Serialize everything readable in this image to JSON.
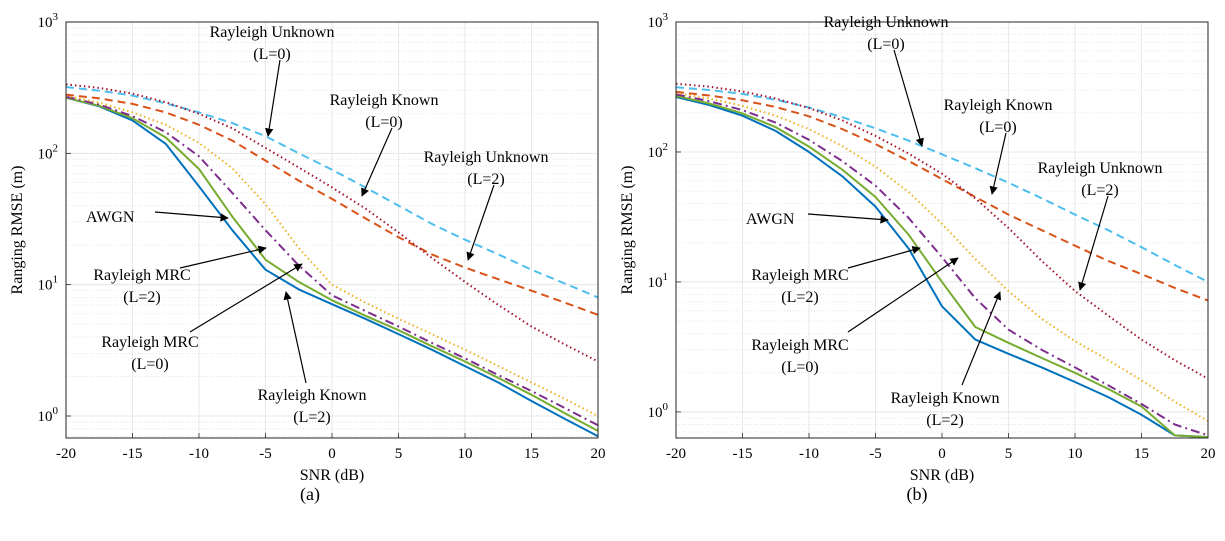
{
  "colors": {
    "AWGN": "#0072BD",
    "Rayleigh MRC (L=2)": "#77AC30",
    "Rayleigh MRC (L=0)": "#7E2F8E",
    "Rayleigh Known (L=2)": "#EDB120",
    "Rayleigh Known (L=0)": "#D95319",
    "Rayleigh Unknown (L=0)": "#4DBEEE",
    "Rayleigh Unknown (L=2)": "#A2142F"
  },
  "chart_data": [
    {
      "type": "line",
      "caption": "(a)",
      "xlabel": "SNR (dB)",
      "ylabel": "Ranging RMSE (m)",
      "xlim": [
        -20,
        20
      ],
      "ylim": [
        0.68,
        1000
      ],
      "yscale": "log",
      "grid": true,
      "xticks": [
        "-20",
        "-15",
        "-10",
        "-5",
        "0",
        "5",
        "10",
        "15",
        "20"
      ],
      "yticks": [
        "10^0",
        "10^1",
        "10^2",
        "10^3"
      ],
      "x": [
        -20,
        -17.5,
        -15,
        -12.5,
        -10,
        -7.5,
        -5,
        -2.5,
        0,
        2.5,
        5,
        7.5,
        10,
        12.5,
        15,
        17.5,
        20
      ],
      "series": [
        {
          "name": "AWGN",
          "style": "solid",
          "values": [
            265,
            228,
            178,
            118,
            56,
            26,
            13,
            9.2,
            7.1,
            5.5,
            4.2,
            3.2,
            2.4,
            1.8,
            1.3,
            0.95,
            0.7
          ]
        },
        {
          "name": "Rayleigh MRC (L=2)",
          "style": "solid",
          "values": [
            265,
            230,
            185,
            132,
            76,
            33,
            15.5,
            10.5,
            7.6,
            5.8,
            4.5,
            3.4,
            2.6,
            1.95,
            1.45,
            1.05,
            0.77
          ]
        },
        {
          "name": "Rayleigh MRC (L=0)",
          "style": "dashdot",
          "values": [
            270,
            235,
            192,
            145,
            95,
            50,
            26,
            14,
            8.3,
            6.3,
            4.8,
            3.6,
            2.75,
            2.05,
            1.55,
            1.15,
            0.85
          ]
        },
        {
          "name": "Rayleigh Known (L=2)",
          "style": "dotted",
          "values": [
            275,
            243,
            205,
            165,
            120,
            77,
            41,
            19,
            10,
            7.3,
            5.5,
            4.2,
            3.2,
            2.4,
            1.8,
            1.35,
            1.0
          ]
        },
        {
          "name": "Rayleigh Known (L=0)",
          "style": "dashed",
          "values": [
            280,
            262,
            238,
            205,
            165,
            125,
            88,
            62,
            45,
            32,
            23,
            17,
            13.5,
            11,
            9,
            7.3,
            5.9
          ]
        },
        {
          "name": "Rayleigh Unknown (L=0)",
          "style": "dashed",
          "values": [
            320,
            300,
            275,
            240,
            205,
            170,
            135,
            100,
            75,
            55,
            40,
            29,
            22,
            17,
            13,
            10.2,
            8.0
          ]
        },
        {
          "name": "Rayleigh Unknown (L=2)",
          "style": "dotted",
          "values": [
            335,
            315,
            285,
            245,
            200,
            155,
            110,
            78,
            55,
            38,
            25,
            16,
            10.5,
            7,
            4.8,
            3.5,
            2.6
          ]
        }
      ],
      "annotations": [
        {
          "lines": [
            "Rayleigh Unknown",
            "(L=0)"
          ]
        },
        {
          "lines": [
            "Rayleigh Known",
            "(L=0)"
          ]
        },
        {
          "lines": [
            "Rayleigh Unknown",
            "(L=2)"
          ]
        },
        {
          "lines": [
            "AWGN"
          ]
        },
        {
          "lines": [
            "Rayleigh MRC",
            "(L=2)"
          ]
        },
        {
          "lines": [
            "Rayleigh MRC",
            "(L=0)"
          ]
        },
        {
          "lines": [
            "Rayleigh Known",
            "(L=2)"
          ]
        }
      ]
    },
    {
      "type": "line",
      "caption": "(b)",
      "xlabel": "SNR (dB)",
      "ylabel": "Ranging RMSE (m)",
      "xlim": [
        -20,
        20
      ],
      "ylim": [
        0.63,
        1000
      ],
      "yscale": "log",
      "grid": true,
      "xticks": [
        "-20",
        "-15",
        "-10",
        "-5",
        "0",
        "5",
        "10",
        "15",
        "20"
      ],
      "yticks": [
        "10^0",
        "10^1",
        "10^2",
        "10^3"
      ],
      "x": [
        -20,
        -17.5,
        -15,
        -12.5,
        -10,
        -7.5,
        -5,
        -2.5,
        0,
        2.5,
        5,
        7.5,
        10,
        12.5,
        15,
        17.5,
        20
      ],
      "series": [
        {
          "name": "AWGN",
          "style": "solid",
          "values": [
            265,
            230,
            190,
            145,
            100,
            65,
            38,
            18,
            6.5,
            3.6,
            2.8,
            2.2,
            1.7,
            1.3,
            0.95,
            0.66,
            0.64
          ]
        },
        {
          "name": "Rayleigh MRC (L=2)",
          "style": "solid",
          "values": [
            270,
            236,
            198,
            155,
            110,
            73,
            45,
            23,
            10,
            4.5,
            3.4,
            2.6,
            2.0,
            1.5,
            1.1,
            0.66,
            0.64
          ]
        },
        {
          "name": "Rayleigh MRC (L=0)",
          "style": "dashdot",
          "values": [
            278,
            246,
            210,
            168,
            124,
            85,
            55,
            31,
            15.5,
            7.5,
            4.3,
            3.0,
            2.2,
            1.6,
            1.15,
            0.8,
            0.66
          ]
        },
        {
          "name": "Rayleigh Known (L=2)",
          "style": "dotted",
          "values": [
            285,
            258,
            226,
            190,
            150,
            111,
            77,
            49,
            28,
            15,
            8.5,
            5.2,
            3.5,
            2.5,
            1.75,
            1.2,
            0.85
          ]
        },
        {
          "name": "Rayleigh Known (L=0)",
          "style": "dashed",
          "values": [
            290,
            272,
            250,
            222,
            188,
            150,
            115,
            85,
            62,
            45,
            33,
            25,
            19,
            14.5,
            11.5,
            9,
            7.2
          ]
        },
        {
          "name": "Rayleigh Unknown (L=0)",
          "style": "dashed",
          "values": [
            315,
            300,
            280,
            252,
            220,
            185,
            152,
            122,
            96,
            75,
            58,
            44,
            33,
            25,
            18.5,
            13.5,
            10
          ]
        },
        {
          "name": "Rayleigh Unknown (L=2)",
          "style": "dotted",
          "values": [
            335,
            318,
            292,
            258,
            218,
            175,
            133,
            97,
            68,
            44,
            26,
            14.5,
            8.5,
            5.5,
            3.6,
            2.5,
            1.8
          ]
        }
      ],
      "annotations": [
        {
          "lines": [
            "Rayleigh Unknown",
            "(L=0)"
          ]
        },
        {
          "lines": [
            "Rayleigh Known",
            "(L=0)"
          ]
        },
        {
          "lines": [
            "Rayleigh Unknown",
            "(L=2)"
          ]
        },
        {
          "lines": [
            "AWGN"
          ]
        },
        {
          "lines": [
            "Rayleigh MRC",
            "(L=2)"
          ]
        },
        {
          "lines": [
            "Rayleigh MRC",
            "(L=0)"
          ]
        },
        {
          "lines": [
            "Rayleigh Known",
            "(L=2)"
          ]
        }
      ]
    }
  ]
}
